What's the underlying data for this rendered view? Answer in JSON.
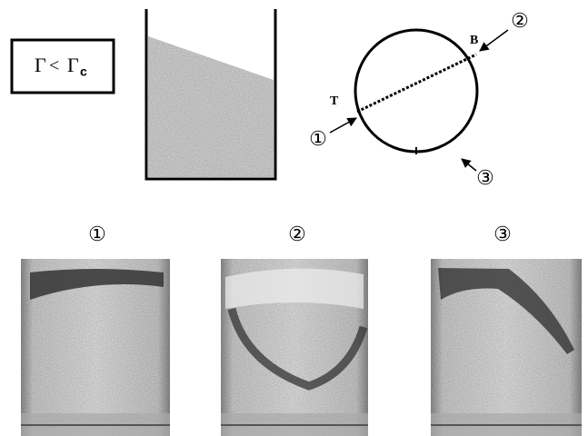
{
  "condition": {
    "left": "Γ",
    "operator": "<",
    "right": "Γ",
    "subscript": "c"
  },
  "circle": {
    "label_top": "B",
    "label_bottom": "T",
    "markers": [
      "①",
      "②",
      "③"
    ]
  },
  "photos": [
    {
      "label": "①"
    },
    {
      "label": "②"
    },
    {
      "label": "③"
    }
  ]
}
